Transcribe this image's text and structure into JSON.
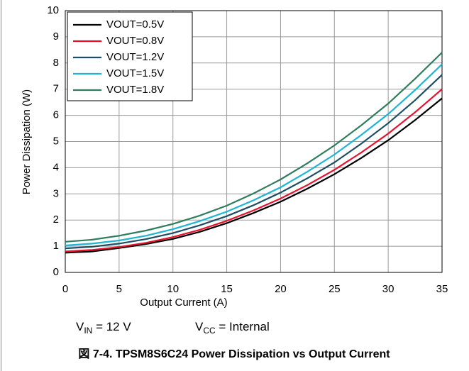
{
  "chart_data": {
    "type": "line",
    "xlabel": "Output Current (A)",
    "ylabel": "Power Dissipation (W)",
    "caption": "図 7-4. TPSM8S6C24 Power Dissipation vs Output Current",
    "annotations": [
      {
        "text": "V",
        "sub": "IN",
        "after": " = 12 V"
      },
      {
        "text": "V",
        "sub": "CC",
        "after": " = Internal"
      }
    ],
    "x": [
      0,
      2.5,
      5,
      7.5,
      10,
      12.5,
      15,
      17.5,
      20,
      22.5,
      25,
      27.5,
      30,
      32.5,
      35
    ],
    "series": [
      {
        "name": "VOUT=0.5V",
        "color": "#000000",
        "values": [
          0.75,
          0.8,
          0.93,
          1.08,
          1.28,
          1.55,
          1.88,
          2.27,
          2.7,
          3.2,
          3.75,
          4.37,
          5.05,
          5.82,
          6.65
        ]
      },
      {
        "name": "VOUT=0.8V",
        "color": "#e8112d",
        "values": [
          0.8,
          0.86,
          0.97,
          1.13,
          1.35,
          1.63,
          1.97,
          2.37,
          2.82,
          3.34,
          3.92,
          4.58,
          5.3,
          6.12,
          7.0
        ]
      },
      {
        "name": "VOUT=1.2V",
        "color": "#1d4f63",
        "values": [
          0.92,
          0.98,
          1.1,
          1.27,
          1.5,
          1.8,
          2.15,
          2.57,
          3.05,
          3.6,
          4.2,
          4.92,
          5.7,
          6.58,
          7.55
        ]
      },
      {
        "name": "VOUT=1.5V",
        "color": "#1cb5d3",
        "values": [
          1.03,
          1.1,
          1.22,
          1.4,
          1.65,
          1.96,
          2.32,
          2.76,
          3.25,
          3.85,
          4.5,
          5.25,
          6.05,
          6.97,
          7.95
        ]
      },
      {
        "name": "VOUT=1.8V",
        "color": "#2f7d5c",
        "values": [
          1.17,
          1.25,
          1.4,
          1.6,
          1.85,
          2.17,
          2.55,
          3.02,
          3.55,
          4.17,
          4.85,
          5.62,
          6.45,
          7.4,
          8.4
        ]
      }
    ],
    "xlim": [
      0,
      35
    ],
    "xticks": [
      0,
      5,
      10,
      15,
      20,
      25,
      30,
      35
    ],
    "ylim": [
      0,
      10
    ],
    "yticks": [
      0,
      1,
      2,
      3,
      4,
      5,
      6,
      7,
      8,
      9,
      10
    ],
    "grid": true,
    "legend": "upper left"
  }
}
